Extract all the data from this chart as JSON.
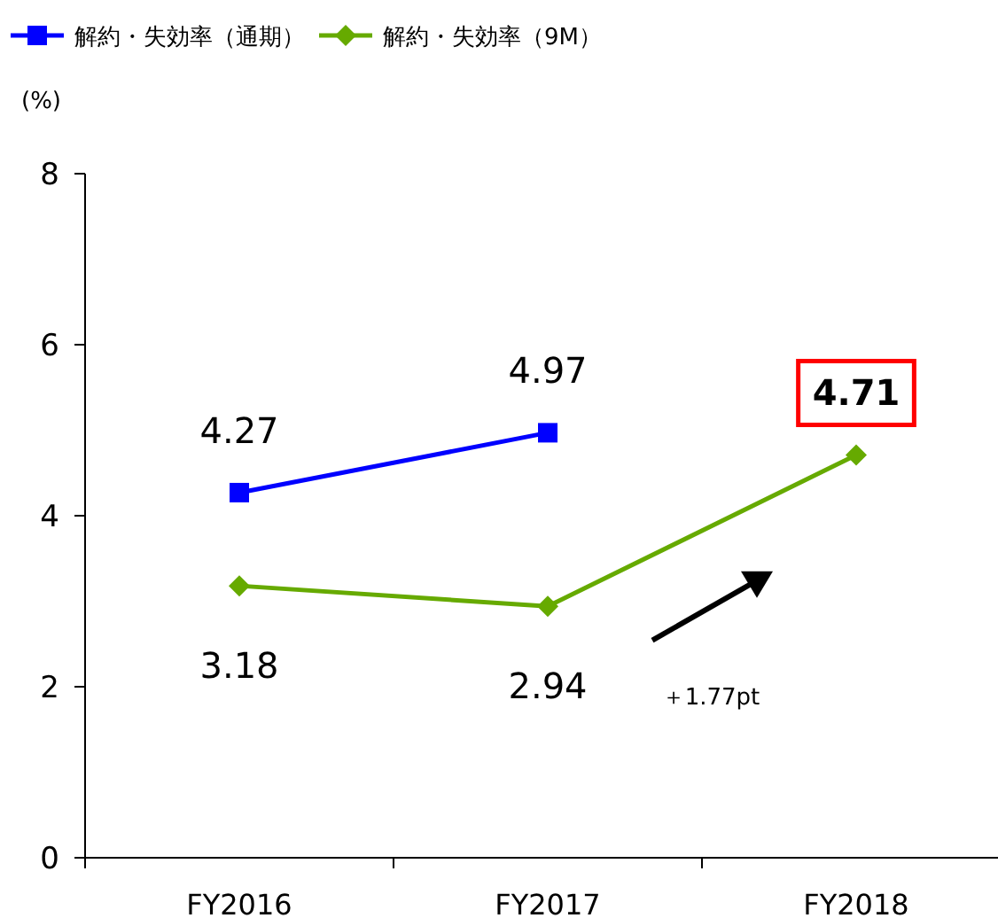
{
  "chart_data": {
    "type": "line",
    "ylabel": "(%)",
    "categories": [
      "FY2016",
      "FY2017",
      "FY2018"
    ],
    "series": [
      {
        "name": "解約・失効率（通期）",
        "color": "#0000ff",
        "marker": "square",
        "values": [
          4.27,
          4.97,
          null
        ]
      },
      {
        "name": "解約・失効率（9M）",
        "color": "#66aa00",
        "marker": "diamond",
        "values": [
          3.18,
          2.94,
          4.71
        ]
      }
    ],
    "ylim": [
      0,
      8
    ],
    "yticks": [
      0,
      2,
      4,
      6,
      8
    ],
    "data_labels": true,
    "legend": "top left",
    "grid": false,
    "annotations": [
      "＋1.77pt"
    ]
  }
}
